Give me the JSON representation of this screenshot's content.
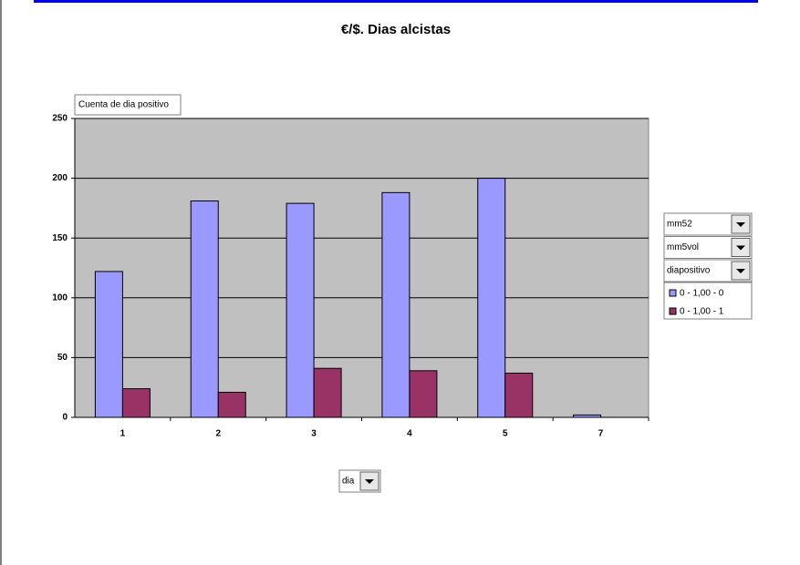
{
  "chart_data": {
    "type": "bar",
    "title": "€/$. Dias alcistas",
    "data_field": "Cuenta de dia positivo",
    "page_fields": [
      "mm52",
      "mm5vol",
      "diapositivo"
    ],
    "category_field": "dia",
    "categories": [
      "1",
      "2",
      "3",
      "4",
      "5",
      "7"
    ],
    "series": [
      {
        "name": "0 - 1,00 - 0",
        "color": "#9999ff",
        "values": [
          122,
          181,
          179,
          188,
          200,
          2
        ]
      },
      {
        "name": "0 - 1,00 - 1",
        "color": "#993366",
        "values": [
          24,
          21,
          41,
          39,
          37,
          null
        ]
      }
    ],
    "ylim": [
      0,
      250
    ],
    "yticks": [
      0,
      50,
      100,
      150,
      200,
      250
    ],
    "grid": true,
    "plot_background": "#c0c0c0"
  }
}
